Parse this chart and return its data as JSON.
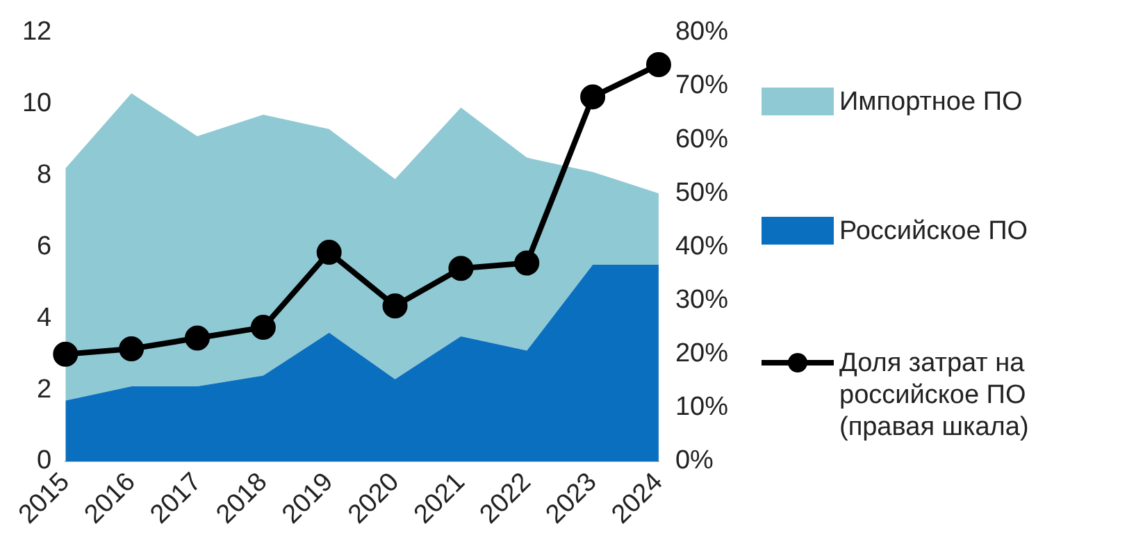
{
  "chart_data": {
    "type": "area",
    "stacked": true,
    "categories": [
      "2015",
      "2016",
      "2017",
      "2018",
      "2019",
      "2020",
      "2021",
      "2022",
      "2023",
      "2024"
    ],
    "series": [
      {
        "name": "Российское ПО",
        "color": "#0b6fbf",
        "values": [
          1.7,
          2.1,
          2.1,
          2.4,
          3.6,
          2.3,
          3.5,
          3.1,
          5.5,
          5.5
        ]
      },
      {
        "name": "Импортное ПО",
        "color": "#8fcad4",
        "values": [
          6.5,
          8.2,
          7.0,
          7.3,
          5.7,
          5.6,
          6.4,
          5.4,
          2.6,
          2.0
        ]
      },
      {
        "name": "Доля затрат на российское ПО (правая шкала)",
        "type": "line",
        "axis": "y2",
        "marker": "circle",
        "color": "#000000",
        "values": [
          20,
          21,
          23,
          25,
          39,
          29,
          36,
          37,
          68,
          74
        ]
      }
    ],
    "ylim": [
      0,
      12
    ],
    "yticks": [
      0,
      2,
      4,
      6,
      8,
      10,
      12
    ],
    "y2lim": [
      0,
      80
    ],
    "y2ticks": [
      {
        "value": 0,
        "label": "0%"
      },
      {
        "value": 10,
        "label": "10%"
      },
      {
        "value": 20,
        "label": "20%"
      },
      {
        "value": 30,
        "label": "30%"
      },
      {
        "value": 40,
        "label": "40%"
      },
      {
        "value": 50,
        "label": "50%"
      },
      {
        "value": 60,
        "label": "60%"
      },
      {
        "value": 70,
        "label": "70%"
      },
      {
        "value": 80,
        "label": "80%"
      }
    ],
    "grid": false,
    "legend": "right",
    "line_style": "solid"
  }
}
